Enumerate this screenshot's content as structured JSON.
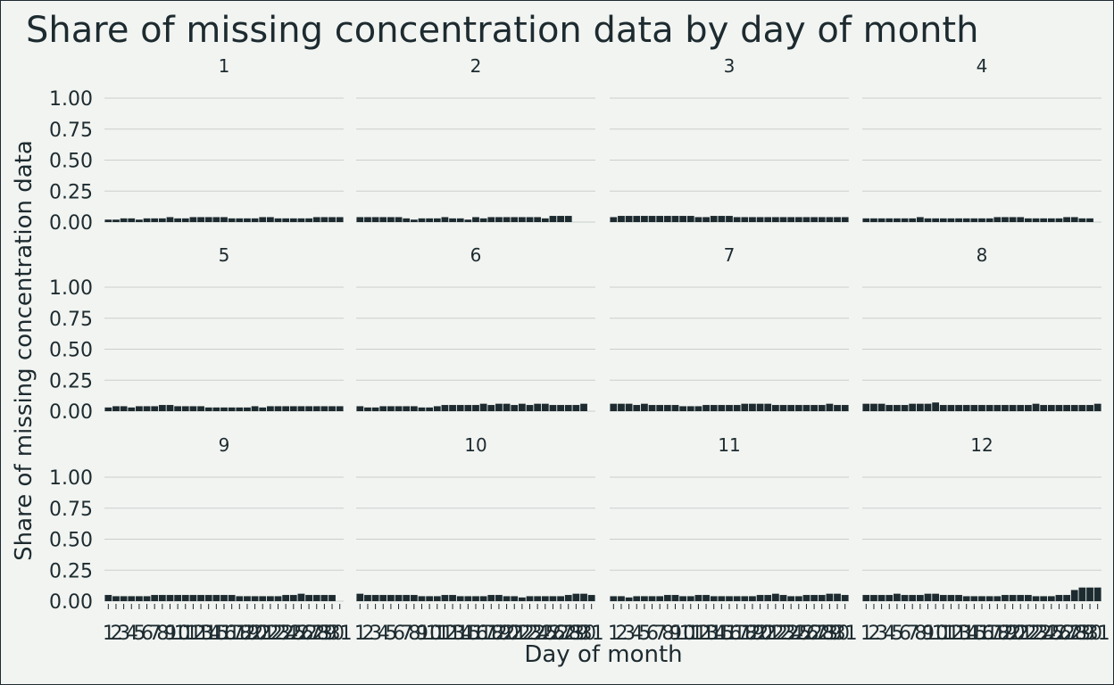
{
  "chart_data": {
    "type": "bar",
    "title": "Share of missing concentration data by day of month",
    "xlabel": "Day of month",
    "ylabel": "Share of missing concentration data",
    "ylim": [
      0,
      1
    ],
    "y_ticks": [
      "0.00",
      "0.25",
      "0.50",
      "0.75",
      "1.00"
    ],
    "grid": "horizontal",
    "bar_color": "#1d2b30",
    "background_color": "#f2f4f1",
    "facet_by": "month",
    "days": [
      "1",
      "2",
      "3",
      "4",
      "5",
      "6",
      "7",
      "8",
      "9",
      "10",
      "11",
      "12",
      "13",
      "14",
      "15",
      "16",
      "17",
      "18",
      "19",
      "20",
      "21",
      "22",
      "23",
      "24",
      "25",
      "26",
      "27",
      "28",
      "29",
      "30",
      "31"
    ],
    "panels": [
      {
        "label": "1",
        "values": [
          0.02,
          0.02,
          0.03,
          0.03,
          0.02,
          0.03,
          0.03,
          0.03,
          0.04,
          0.03,
          0.03,
          0.04,
          0.04,
          0.04,
          0.04,
          0.04,
          0.03,
          0.03,
          0.03,
          0.03,
          0.04,
          0.04,
          0.03,
          0.03,
          0.03,
          0.03,
          0.03,
          0.04,
          0.04,
          0.04,
          0.04
        ]
      },
      {
        "label": "2",
        "values": [
          0.04,
          0.04,
          0.04,
          0.04,
          0.04,
          0.04,
          0.03,
          0.02,
          0.03,
          0.03,
          0.03,
          0.04,
          0.03,
          0.03,
          0.02,
          0.04,
          0.03,
          0.04,
          0.04,
          0.04,
          0.04,
          0.04,
          0.04,
          0.04,
          0.03,
          0.05,
          0.05,
          0.05
        ]
      },
      {
        "label": "3",
        "values": [
          0.04,
          0.05,
          0.05,
          0.05,
          0.05,
          0.05,
          0.05,
          0.05,
          0.05,
          0.05,
          0.05,
          0.04,
          0.04,
          0.05,
          0.05,
          0.05,
          0.04,
          0.04,
          0.04,
          0.04,
          0.04,
          0.04,
          0.04,
          0.04,
          0.04,
          0.04,
          0.04,
          0.04,
          0.04,
          0.04,
          0.04
        ]
      },
      {
        "label": "4",
        "values": [
          0.03,
          0.03,
          0.03,
          0.03,
          0.03,
          0.03,
          0.03,
          0.04,
          0.03,
          0.03,
          0.03,
          0.03,
          0.03,
          0.03,
          0.03,
          0.03,
          0.03,
          0.04,
          0.04,
          0.04,
          0.04,
          0.03,
          0.03,
          0.03,
          0.03,
          0.03,
          0.04,
          0.04,
          0.03,
          0.03
        ]
      },
      {
        "label": "5",
        "values": [
          0.03,
          0.04,
          0.04,
          0.03,
          0.04,
          0.04,
          0.04,
          0.05,
          0.05,
          0.04,
          0.04,
          0.04,
          0.04,
          0.03,
          0.03,
          0.03,
          0.03,
          0.03,
          0.03,
          0.04,
          0.03,
          0.04,
          0.04,
          0.04,
          0.04,
          0.04,
          0.04,
          0.04,
          0.04,
          0.04,
          0.04
        ]
      },
      {
        "label": "6",
        "values": [
          0.04,
          0.03,
          0.03,
          0.04,
          0.04,
          0.04,
          0.04,
          0.04,
          0.03,
          0.03,
          0.04,
          0.05,
          0.05,
          0.05,
          0.05,
          0.05,
          0.06,
          0.05,
          0.06,
          0.06,
          0.05,
          0.06,
          0.05,
          0.06,
          0.06,
          0.05,
          0.05,
          0.05,
          0.05,
          0.06
        ]
      },
      {
        "label": "7",
        "values": [
          0.06,
          0.06,
          0.06,
          0.05,
          0.06,
          0.05,
          0.05,
          0.05,
          0.05,
          0.04,
          0.04,
          0.04,
          0.05,
          0.05,
          0.05,
          0.05,
          0.05,
          0.06,
          0.06,
          0.06,
          0.06,
          0.05,
          0.05,
          0.05,
          0.05,
          0.05,
          0.05,
          0.05,
          0.06,
          0.05,
          0.05
        ]
      },
      {
        "label": "8",
        "values": [
          0.06,
          0.06,
          0.06,
          0.05,
          0.05,
          0.05,
          0.06,
          0.06,
          0.06,
          0.07,
          0.05,
          0.05,
          0.05,
          0.05,
          0.05,
          0.05,
          0.05,
          0.05,
          0.05,
          0.05,
          0.05,
          0.05,
          0.06,
          0.05,
          0.05,
          0.05,
          0.05,
          0.05,
          0.05,
          0.05,
          0.06
        ]
      },
      {
        "label": "9",
        "values": [
          0.05,
          0.04,
          0.04,
          0.04,
          0.04,
          0.04,
          0.05,
          0.05,
          0.05,
          0.05,
          0.05,
          0.05,
          0.05,
          0.05,
          0.05,
          0.05,
          0.05,
          0.04,
          0.04,
          0.04,
          0.04,
          0.04,
          0.04,
          0.05,
          0.05,
          0.06,
          0.05,
          0.05,
          0.05,
          0.05
        ]
      },
      {
        "label": "10",
        "values": [
          0.06,
          0.05,
          0.05,
          0.05,
          0.05,
          0.05,
          0.05,
          0.05,
          0.04,
          0.04,
          0.04,
          0.05,
          0.05,
          0.04,
          0.04,
          0.04,
          0.04,
          0.05,
          0.05,
          0.04,
          0.04,
          0.03,
          0.04,
          0.04,
          0.04,
          0.04,
          0.04,
          0.05,
          0.06,
          0.06,
          0.05
        ]
      },
      {
        "label": "11",
        "values": [
          0.04,
          0.04,
          0.03,
          0.04,
          0.04,
          0.04,
          0.04,
          0.05,
          0.05,
          0.04,
          0.04,
          0.05,
          0.05,
          0.04,
          0.04,
          0.04,
          0.04,
          0.04,
          0.04,
          0.05,
          0.05,
          0.06,
          0.05,
          0.04,
          0.04,
          0.05,
          0.05,
          0.05,
          0.06,
          0.06,
          0.05
        ]
      },
      {
        "label": "12",
        "values": [
          0.05,
          0.05,
          0.05,
          0.05,
          0.06,
          0.05,
          0.05,
          0.05,
          0.06,
          0.06,
          0.05,
          0.05,
          0.05,
          0.04,
          0.04,
          0.04,
          0.04,
          0.04,
          0.05,
          0.05,
          0.05,
          0.05,
          0.04,
          0.04,
          0.04,
          0.05,
          0.05,
          0.09,
          0.11,
          0.11,
          0.11
        ]
      }
    ]
  }
}
